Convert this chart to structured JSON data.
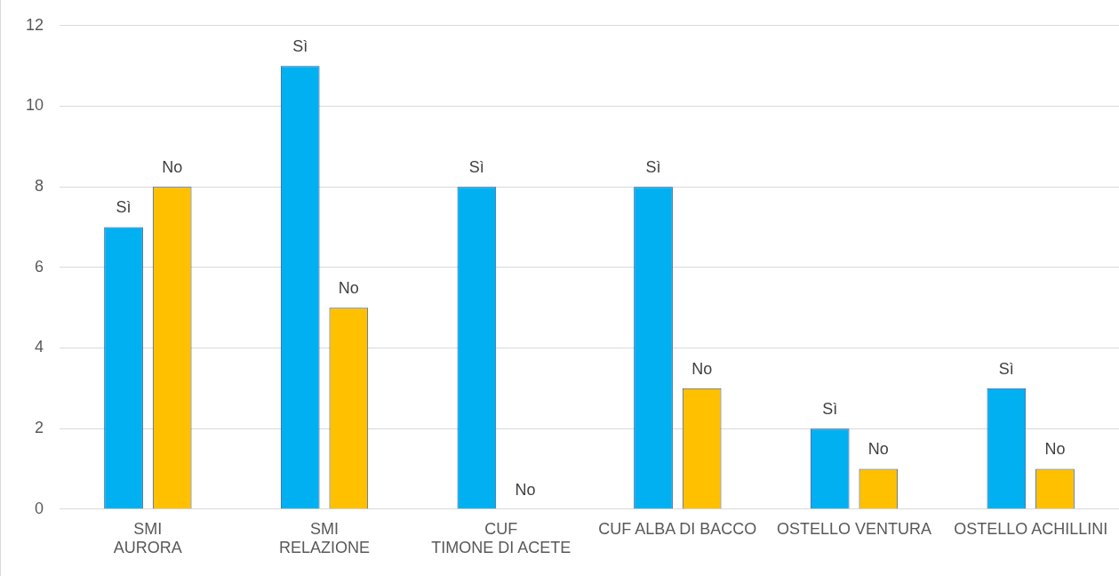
{
  "chart_data": {
    "type": "bar",
    "categories": [
      "SMI\nAURORA",
      "SMI\nRELAZIONE",
      "CUF\nTIMONE DI ACETE",
      "CUF ALBA DI BACCO",
      "OSTELLO VENTURA",
      "OSTELLO ACHILLINI"
    ],
    "series": [
      {
        "name": "Sì",
        "color": "#00b0f0",
        "values": [
          7,
          11,
          8,
          8,
          2,
          3
        ]
      },
      {
        "name": "No",
        "color": "#ffc000",
        "values": [
          8,
          5,
          0,
          3,
          1,
          1
        ]
      }
    ],
    "ylim": [
      0,
      12
    ],
    "yticks": [
      0,
      2,
      4,
      6,
      8,
      10,
      12
    ],
    "grid": "y",
    "legend": false
  }
}
